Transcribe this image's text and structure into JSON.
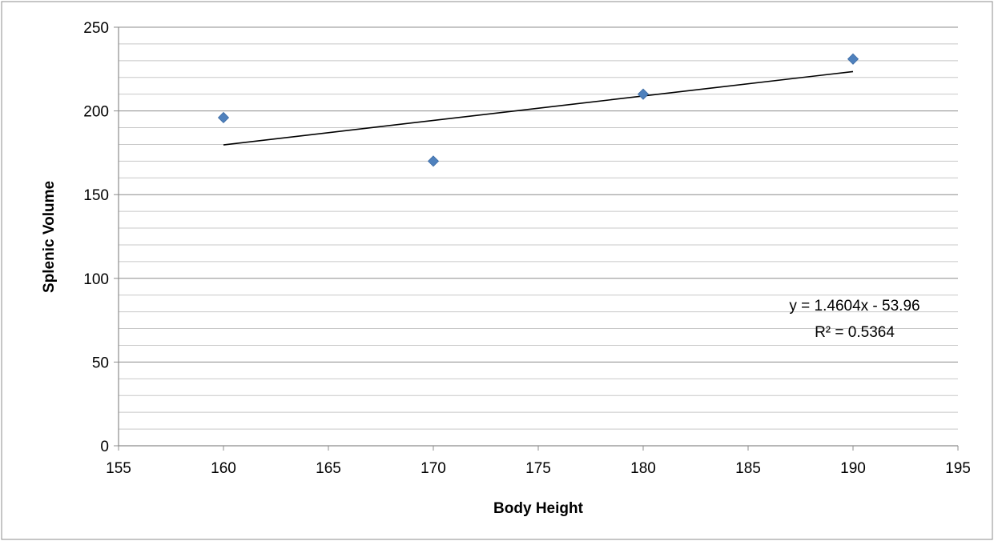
{
  "chart_data": {
    "type": "scatter",
    "title": "",
    "xlabel": "Body Height",
    "ylabel": "Splenic Volume",
    "xlim": [
      155,
      195
    ],
    "ylim": [
      0,
      250
    ],
    "x_ticks": [
      155,
      160,
      165,
      170,
      175,
      180,
      185,
      190,
      195
    ],
    "y_ticks": [
      0,
      50,
      100,
      150,
      200,
      250
    ],
    "y_minor_step": 10,
    "grid": true,
    "legend": "none",
    "series": [
      {
        "x": [
          160,
          170,
          180,
          190
        ],
        "y": [
          196,
          170,
          210,
          231
        ],
        "marker": "diamond",
        "color": "#4F81BD"
      }
    ],
    "trendline": {
      "type": "linear",
      "slope": 1.4604,
      "intercept": -53.96,
      "x_range": [
        160,
        190
      ],
      "color": "#000000",
      "equation_text": "y = 1.4604x - 53.96",
      "r2_text": "R² = 0.5364"
    }
  }
}
